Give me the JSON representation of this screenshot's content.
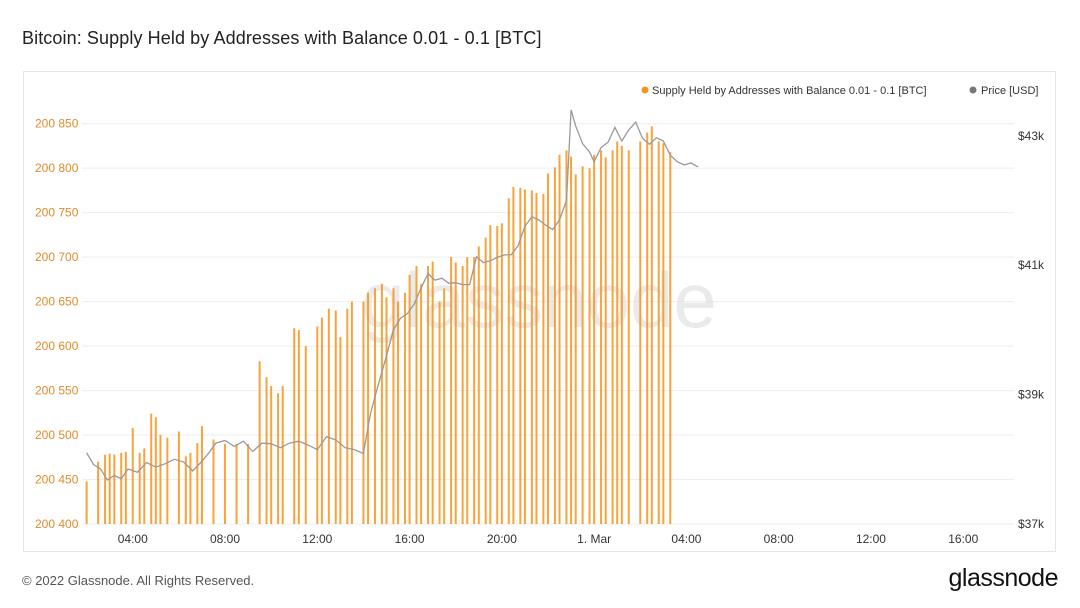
{
  "title": "Bitcoin: Supply Held by Addresses with Balance 0.01 - 0.1 [BTC]",
  "watermark": "glassnode",
  "footer": {
    "copyright": "© 2022 Glassnode. All Rights Reserved.",
    "logo_text": "glassnode"
  },
  "colors": {
    "bars": "#f7931a",
    "price_line": "#9a9a9a",
    "left_axis": "#e08c2a",
    "right_axis": "#333333",
    "grid": "#eeeeee",
    "watermark": "#d9d9d9"
  },
  "chart_data": {
    "type": "bar",
    "title": "Bitcoin: Supply Held by Addresses with Balance 0.01 - 0.1 [BTC]",
    "legend_placement": "top-right",
    "grid": true,
    "x_axis": {
      "ticks": [
        "04:00",
        "08:00",
        "12:00",
        "16:00",
        "20:00",
        "1. Mar",
        "04:00",
        "08:00",
        "12:00",
        "16:00"
      ],
      "tick_hours": [
        4,
        8,
        12,
        16,
        20,
        24,
        28,
        32,
        36,
        40
      ],
      "range_hours": [
        1.8,
        42.2
      ]
    },
    "y_left": {
      "ticks": [
        "200 400",
        "200 450",
        "200 500",
        "200 550",
        "200 600",
        "200 650",
        "200 700",
        "200 750",
        "200 800",
        "200 850"
      ],
      "tick_values": [
        200400,
        200450,
        200500,
        200550,
        200600,
        200650,
        200700,
        200750,
        200800,
        200850
      ],
      "range": [
        200400,
        200880
      ]
    },
    "y_right": {
      "ticks": [
        "$37k",
        "$39k",
        "$41k",
        "$43k"
      ],
      "tick_values": [
        37000,
        39000,
        41000,
        43000
      ],
      "range": [
        37000,
        43600
      ]
    },
    "series": [
      {
        "name": "Supply Held by Addresses with Balance 0.01 - 0.1 [BTC]",
        "axis": "left",
        "kind": "bar",
        "x_hours": [
          2.0,
          2.5,
          2.8,
          3.0,
          3.2,
          3.5,
          3.7,
          4.0,
          4.3,
          4.5,
          4.8,
          5.0,
          5.2,
          5.5,
          6.0,
          6.3,
          6.5,
          6.8,
          7.0,
          7.5,
          8.0,
          8.5,
          9.0,
          9.5,
          9.8,
          10.0,
          10.3,
          10.5,
          11.0,
          11.2,
          11.5,
          12.0,
          12.2,
          12.5,
          12.8,
          13.0,
          13.3,
          13.5,
          14.0,
          14.2,
          14.5,
          14.8,
          15.0,
          15.3,
          15.5,
          15.8,
          16.0,
          16.3,
          16.5,
          16.8,
          17.0,
          17.3,
          17.5,
          17.8,
          18.0,
          18.3,
          18.5,
          18.8,
          19.0,
          19.3,
          19.5,
          19.8,
          20.0,
          20.3,
          20.5,
          20.8,
          21.0,
          21.3,
          21.5,
          21.8,
          22.0,
          22.3,
          22.5,
          22.8,
          23.0,
          23.2,
          23.5,
          23.8,
          24.0,
          24.3,
          24.5,
          24.8,
          25.0,
          25.2,
          25.5,
          26.0,
          26.3,
          26.5,
          26.8,
          27.0,
          27.3
        ],
        "values": [
          200448,
          200470,
          200478,
          200479,
          200478,
          200480,
          200481,
          200508,
          200480,
          200485,
          200524,
          200520,
          200500,
          200497,
          200504,
          200476,
          200480,
          200491,
          200510,
          200495,
          200490,
          200490,
          200490,
          200583,
          200565,
          200555,
          200547,
          200555,
          200620,
          200618,
          200600,
          200622,
          200632,
          200642,
          200640,
          200610,
          200642,
          200650,
          200650,
          200660,
          200665,
          200670,
          200655,
          200665,
          200650,
          200660,
          200680,
          200690,
          200670,
          200690,
          200695,
          200650,
          200665,
          200700,
          200694,
          200690,
          200700,
          200700,
          200712,
          200722,
          200736,
          200735,
          200738,
          200766,
          200779,
          200778,
          200776,
          200775,
          200772,
          200771,
          200794,
          200801,
          200815,
          200820,
          200813,
          200793,
          200802,
          200800,
          200815,
          200820,
          200812,
          200820,
          200830,
          200825,
          200820,
          200830,
          200840,
          200847,
          200830,
          200828,
          200818
        ]
      },
      {
        "name": "Price [USD]",
        "axis": "right",
        "kind": "line",
        "x_hours": [
          2.0,
          2.3,
          2.6,
          2.9,
          3.2,
          3.5,
          3.8,
          4.2,
          4.6,
          5.0,
          5.4,
          5.8,
          6.2,
          6.6,
          7.0,
          7.3,
          7.6,
          8.0,
          8.4,
          8.8,
          9.2,
          9.6,
          10.0,
          10.4,
          10.8,
          11.2,
          11.6,
          12.0,
          12.4,
          12.8,
          13.2,
          13.6,
          14.0,
          14.3,
          14.6,
          15.0,
          15.3,
          15.6,
          15.9,
          16.2,
          16.5,
          16.8,
          17.1,
          17.4,
          17.7,
          18.0,
          18.3,
          18.6,
          18.9,
          19.2,
          19.5,
          19.8,
          20.1,
          20.4,
          20.7,
          21.0,
          21.3,
          21.6,
          21.9,
          22.2,
          22.5,
          22.8,
          23.0,
          23.2,
          23.5,
          23.8,
          24.0,
          24.3,
          24.6,
          24.9,
          25.2,
          25.5,
          25.8,
          26.1,
          26.4,
          26.7,
          27.0,
          27.3,
          27.6,
          27.9,
          28.2,
          28.5
        ],
        "values": [
          38100,
          37920,
          37850,
          37680,
          37750,
          37700,
          37850,
          37800,
          37950,
          37880,
          37930,
          38000,
          37960,
          37820,
          37970,
          38100,
          38250,
          38290,
          38200,
          38280,
          38120,
          38250,
          38240,
          38180,
          38250,
          38280,
          38220,
          38150,
          38350,
          38300,
          38180,
          38150,
          38090,
          38700,
          39100,
          39600,
          40000,
          40180,
          40250,
          40400,
          40650,
          40870,
          40770,
          40800,
          40720,
          40730,
          40700,
          40700,
          41130,
          41040,
          41070,
          41120,
          41160,
          41160,
          41300,
          41600,
          41750,
          41700,
          41620,
          41550,
          41700,
          42000,
          43400,
          43150,
          42880,
          42750,
          42600,
          42820,
          42900,
          43130,
          42920,
          43090,
          43210,
          42960,
          42870,
          42970,
          42920,
          42700,
          42600,
          42550,
          42580,
          42520
        ]
      }
    ]
  }
}
